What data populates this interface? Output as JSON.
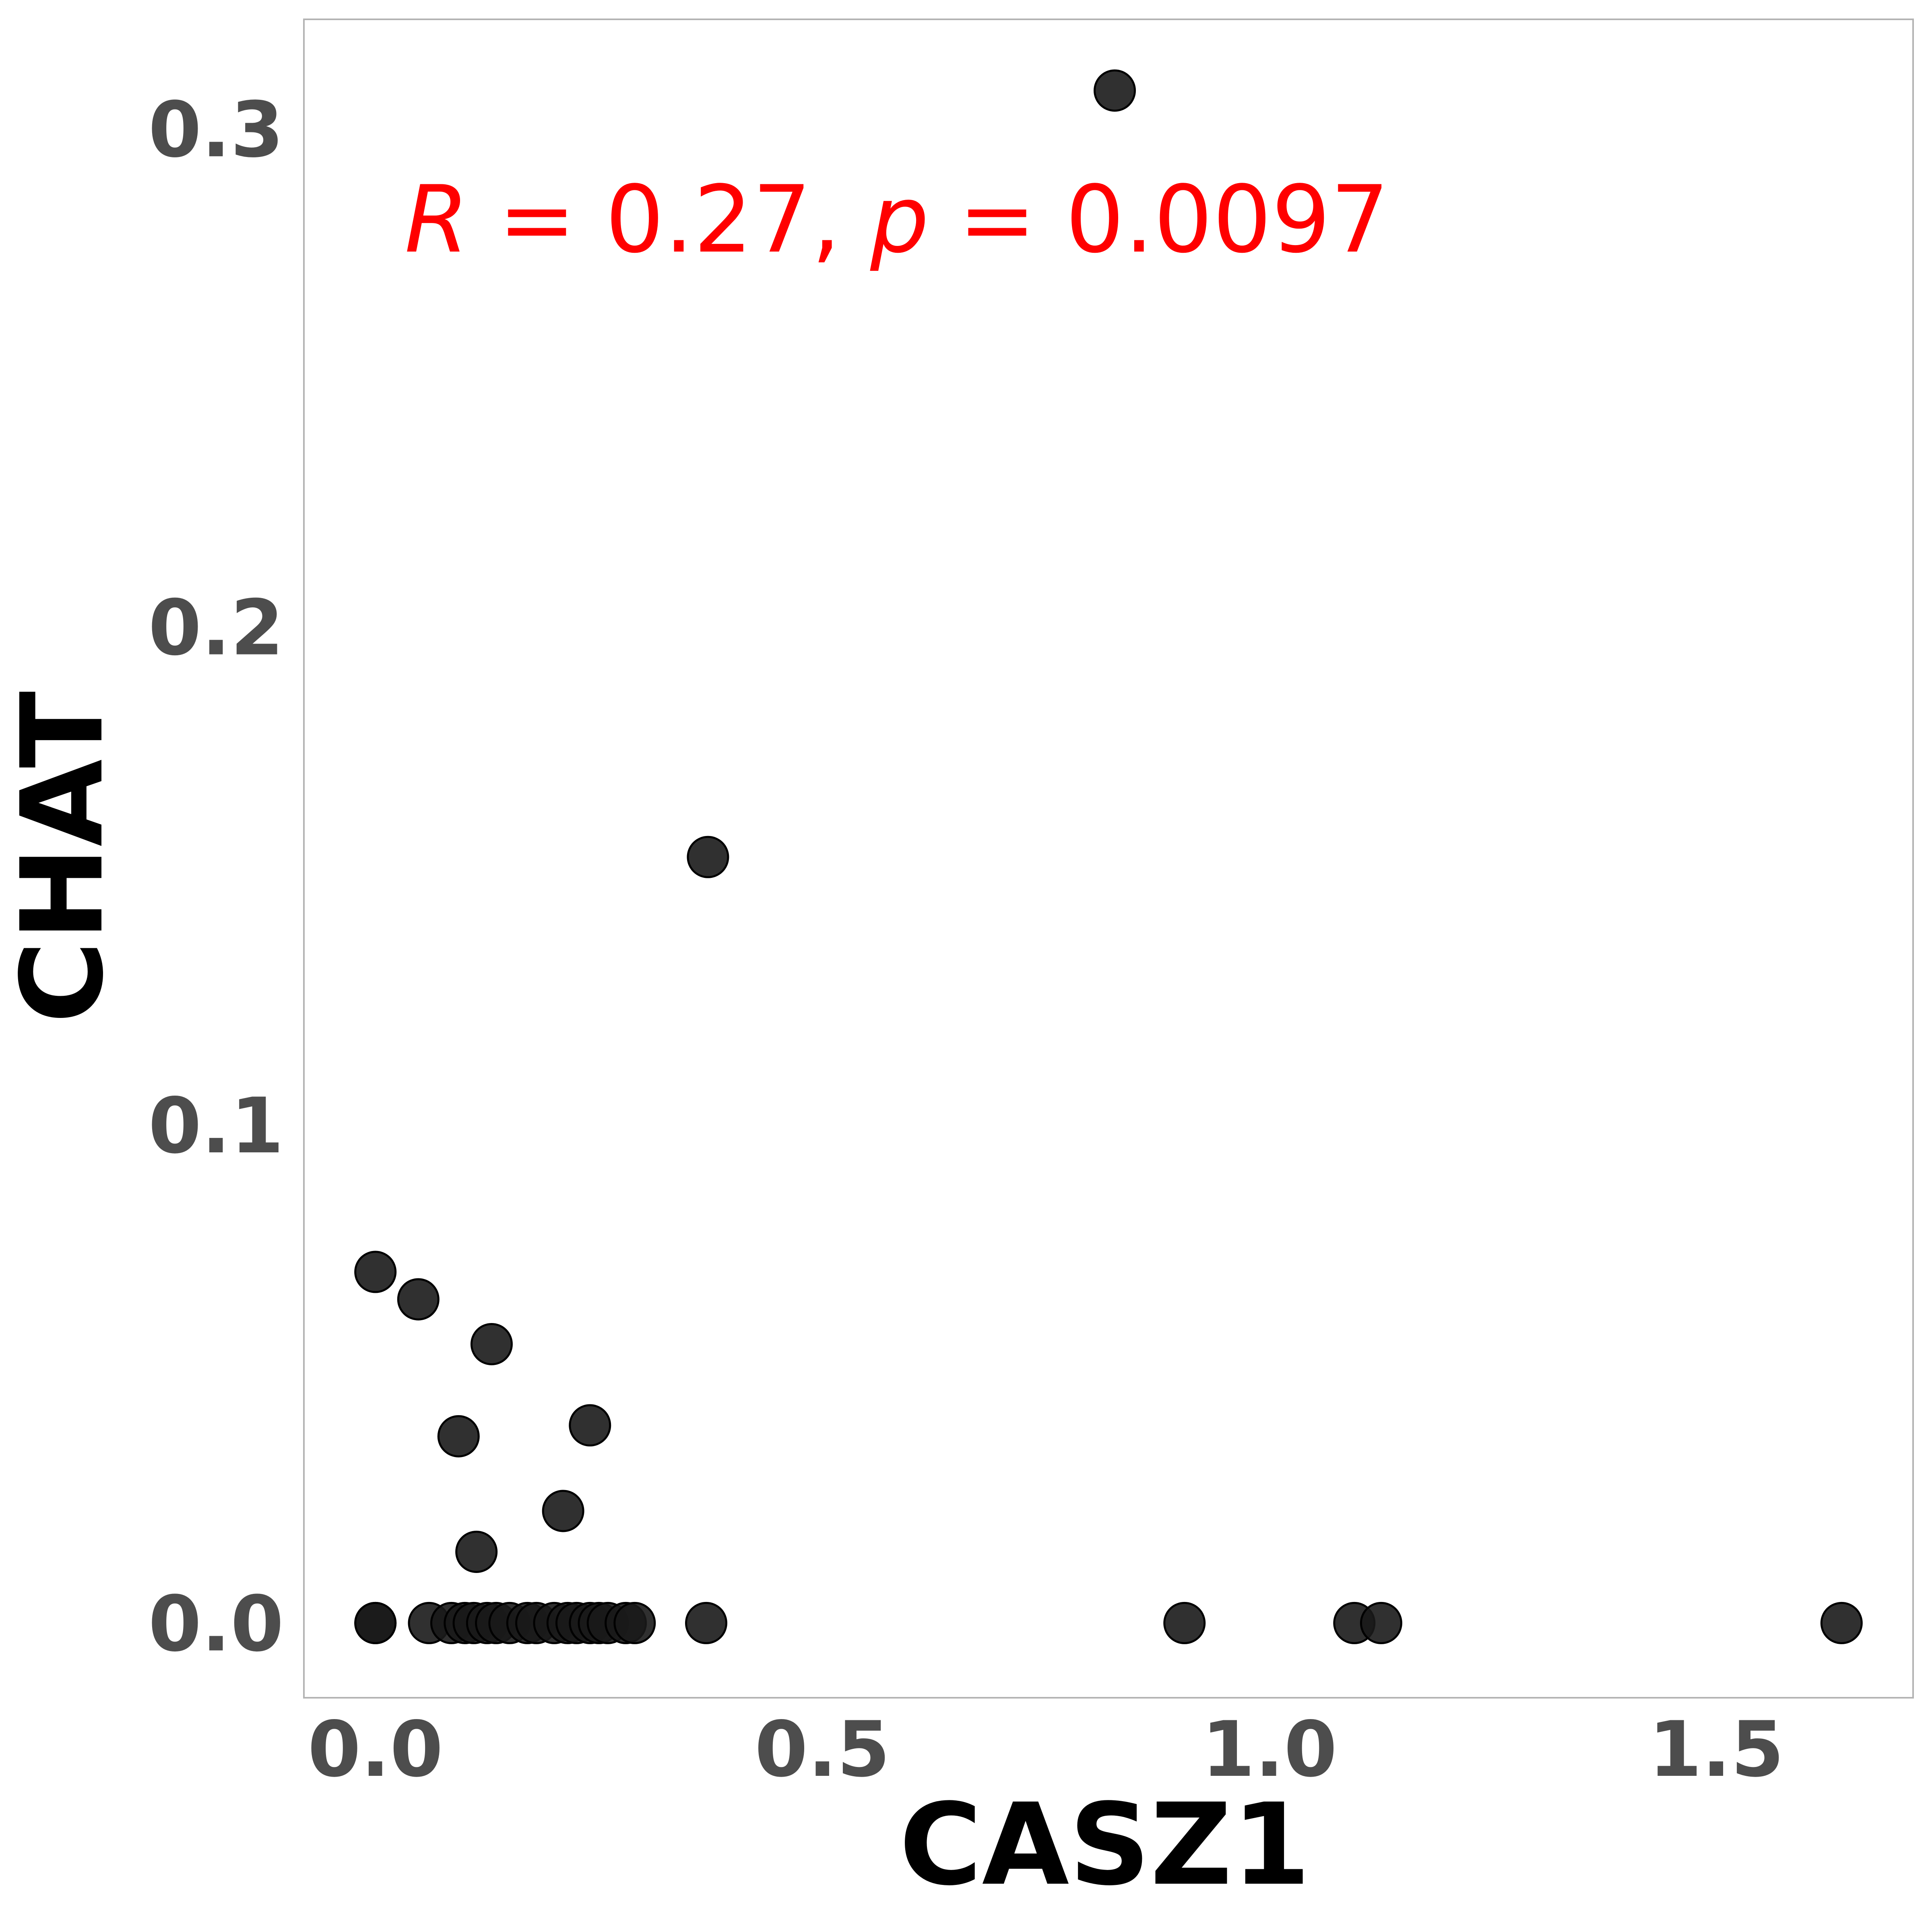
{
  "chart_data": {
    "type": "scatter",
    "title": "",
    "xlabel": "CASZ1",
    "ylabel": "CHAT",
    "xlim": [
      -0.08,
      1.72
    ],
    "ylim": [
      -0.015,
      0.322
    ],
    "xticks": [
      0.0,
      0.5,
      1.0,
      1.5
    ],
    "xtick_labels": [
      "0.0",
      "0.5",
      "1.0",
      "1.5"
    ],
    "yticks": [
      0.0,
      0.1,
      0.2,
      0.3
    ],
    "ytick_labels": [
      "0.0",
      "0.1",
      "0.2",
      "0.3"
    ],
    "grid": false,
    "annotation": {
      "r_symbol": "R",
      "r_text": " = 0.27, ",
      "p_symbol": "p",
      "p_text": " = 0.0097"
    },
    "colors": {
      "point": "#1a1a1a",
      "annotation": "#ff0000",
      "tick": "#4d4d4d",
      "frame": "#b3b3b3"
    },
    "points": [
      {
        "x": 0.0,
        "y": 0.0
      },
      {
        "x": 0.0,
        "y": 0.0
      },
      {
        "x": 0.06,
        "y": 0.0
      },
      {
        "x": 0.085,
        "y": 0.0
      },
      {
        "x": 0.1,
        "y": 0.0
      },
      {
        "x": 0.11,
        "y": 0.0
      },
      {
        "x": 0.125,
        "y": 0.0
      },
      {
        "x": 0.135,
        "y": 0.0
      },
      {
        "x": 0.15,
        "y": 0.0
      },
      {
        "x": 0.17,
        "y": 0.0
      },
      {
        "x": 0.18,
        "y": 0.0
      },
      {
        "x": 0.2,
        "y": 0.0
      },
      {
        "x": 0.215,
        "y": 0.0
      },
      {
        "x": 0.225,
        "y": 0.0
      },
      {
        "x": 0.24,
        "y": 0.0
      },
      {
        "x": 0.25,
        "y": 0.0
      },
      {
        "x": 0.26,
        "y": 0.0
      },
      {
        "x": 0.28,
        "y": 0.0
      },
      {
        "x": 0.29,
        "y": 0.0
      },
      {
        "x": 0.37,
        "y": 0.0
      },
      {
        "x": 0.905,
        "y": 0.0
      },
      {
        "x": 1.095,
        "y": 0.0
      },
      {
        "x": 1.125,
        "y": 0.0
      },
      {
        "x": 1.64,
        "y": 0.0
      },
      {
        "x": 0.0,
        "y": 0.0705
      },
      {
        "x": 0.048,
        "y": 0.065
      },
      {
        "x": 0.13,
        "y": 0.056
      },
      {
        "x": 0.093,
        "y": 0.0375
      },
      {
        "x": 0.24,
        "y": 0.0397
      },
      {
        "x": 0.21,
        "y": 0.0225
      },
      {
        "x": 0.113,
        "y": 0.0143
      },
      {
        "x": 0.372,
        "y": 0.1538
      },
      {
        "x": 0.827,
        "y": 0.3077
      }
    ]
  }
}
